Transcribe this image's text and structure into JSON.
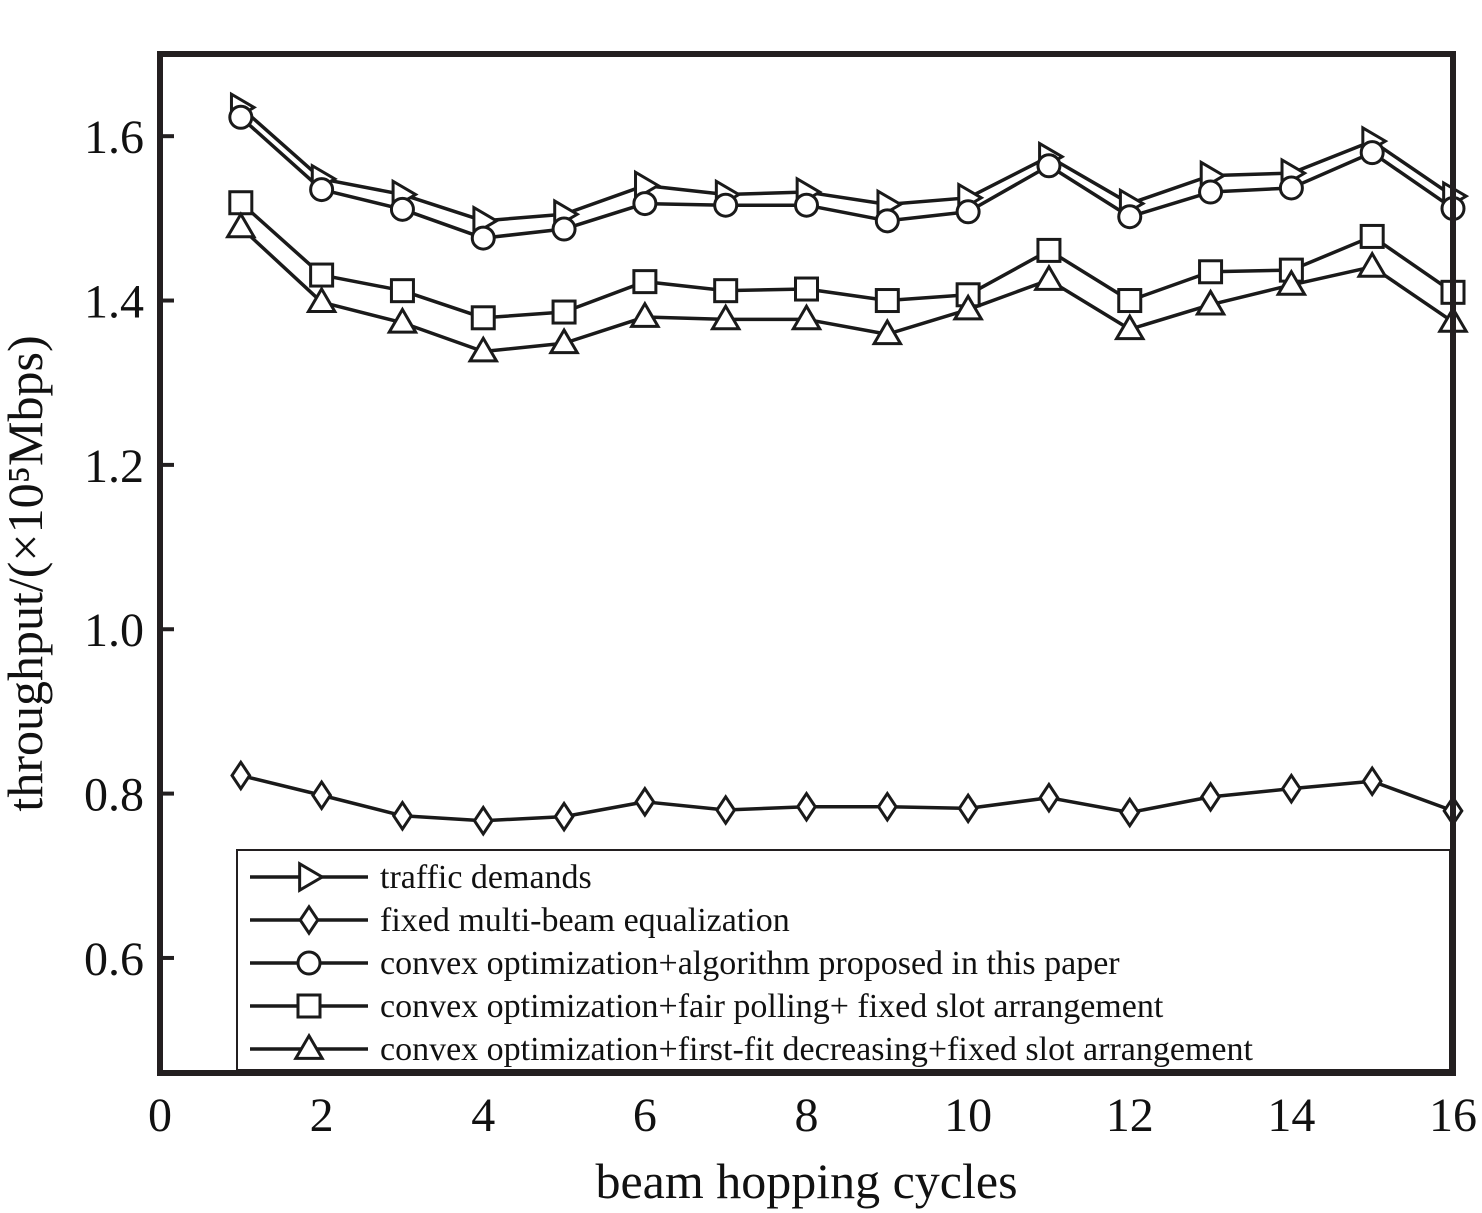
{
  "chart_data": {
    "type": "line",
    "title": "",
    "xlabel": "beam hopping cycles",
    "ylabel": "throughput/(×10⁵Mbps)",
    "xlim": [
      0,
      16
    ],
    "ylim": [
      0.46,
      1.7
    ],
    "xticks": [
      0,
      2,
      4,
      6,
      8,
      10,
      12,
      14,
      16
    ],
    "xtick_labels": [
      "0",
      "2",
      "4",
      "6",
      "8",
      "10",
      "12",
      "14",
      "16"
    ],
    "yticks": [
      0.6,
      0.8,
      1.0,
      1.2,
      1.4,
      1.6
    ],
    "ytick_labels": [
      "0.6",
      "0.8",
      "1.0",
      "1.2",
      "1.4",
      "1.6"
    ],
    "grid": false,
    "legend_position": "bottom",
    "x": [
      1,
      2,
      3,
      4,
      5,
      6,
      7,
      8,
      9,
      10,
      11,
      12,
      13,
      14,
      15,
      16
    ],
    "series": [
      {
        "name": "traffic demands",
        "marker": "triangle-right",
        "values": [
          1.635,
          1.548,
          1.529,
          1.497,
          1.505,
          1.54,
          1.529,
          1.532,
          1.517,
          1.525,
          1.575,
          1.518,
          1.552,
          1.555,
          1.594,
          1.527
        ]
      },
      {
        "name": "fixed multi-beam equalization",
        "marker": "diamond",
        "values": [
          0.822,
          0.798,
          0.773,
          0.767,
          0.772,
          0.79,
          0.78,
          0.784,
          0.784,
          0.782,
          0.795,
          0.777,
          0.796,
          0.806,
          0.815,
          0.779
        ]
      },
      {
        "name": "convex optimization+algorithm proposed in this paper",
        "marker": "circle",
        "values": [
          1.623,
          1.535,
          1.511,
          1.476,
          1.487,
          1.518,
          1.516,
          1.516,
          1.497,
          1.508,
          1.564,
          1.502,
          1.532,
          1.537,
          1.58,
          1.512
        ]
      },
      {
        "name": "convex optimization+fair polling+ fixed slot arrangement",
        "marker": "square",
        "values": [
          1.519,
          1.431,
          1.412,
          1.379,
          1.386,
          1.423,
          1.412,
          1.414,
          1.4,
          1.407,
          1.461,
          1.4,
          1.435,
          1.437,
          1.478,
          1.41
        ]
      },
      {
        "name": "convex optimization+first-fit decreasing+fixed slot arrangement",
        "marker": "triangle-up",
        "values": [
          1.489,
          1.398,
          1.373,
          1.338,
          1.348,
          1.38,
          1.377,
          1.377,
          1.359,
          1.389,
          1.425,
          1.365,
          1.395,
          1.419,
          1.441,
          1.374
        ]
      }
    ]
  },
  "colors": {
    "frame": "#231f20",
    "series": "#1a1a1a",
    "background": "#ffffff"
  }
}
